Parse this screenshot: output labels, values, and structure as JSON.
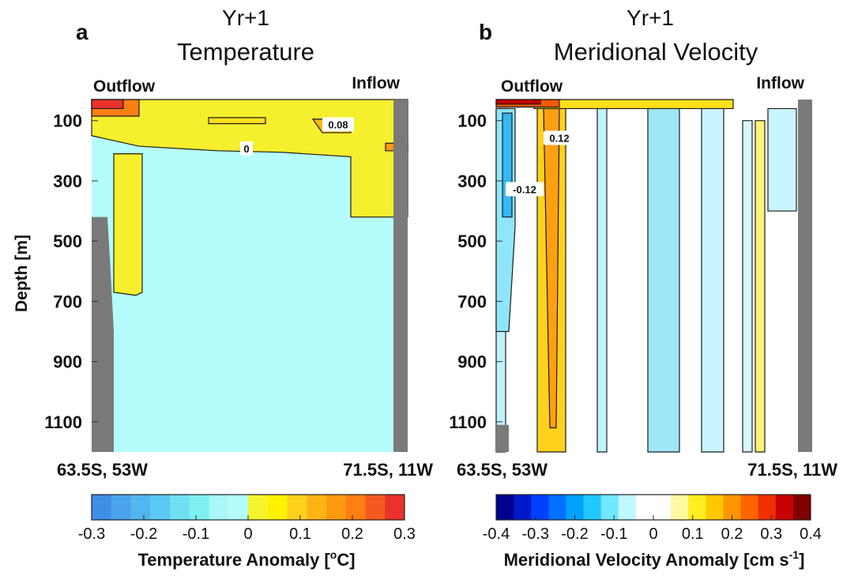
{
  "chart_data": [
    {
      "type": "heatmap",
      "panel_letter": "a",
      "title_line1": "Yr+1",
      "title_line2": "Temperature",
      "left_label": "Outflow",
      "right_label": "Inflow",
      "ylabel": "Depth [m]",
      "yticks": [
        "100",
        "300",
        "500",
        "700",
        "900",
        "1100"
      ],
      "ylim": [
        30,
        1200
      ],
      "x_start_label": "63.5S, 53W",
      "x_end_label": "71.5S, 11W",
      "contour_labels": [
        {
          "text": "0.08",
          "x": 0.78,
          "depth": 115
        },
        {
          "text": "0",
          "x": 0.49,
          "depth": 195
        }
      ],
      "colorbar": {
        "label": "Temperature Anomaly [",
        "unit_sup": "o",
        "unit_end": "C]",
        "ticks": [
          "-0.3",
          "-0.2",
          "-0.1",
          "0",
          "0.1",
          "0.2",
          "0.3"
        ],
        "min": -0.3,
        "max": 0.3,
        "colors": [
          "#3f8fe8",
          "#4aa3ec",
          "#52b6ef",
          "#5ac8f2",
          "#6fe0f2",
          "#7ef0f2",
          "#a8f8f8",
          "#b5fdfd",
          "#f5f52b",
          "#fff200",
          "#ffd11c",
          "#ffb414",
          "#ff9a10",
          "#ff7f12",
          "#f45a1f",
          "#e8322a"
        ]
      },
      "regions": [
        {
          "kind": "poly",
          "color": "#f5ef2e",
          "x": [
            0.0,
            0.3,
            0.58,
            0.82,
            1.0,
            1.0,
            0.82,
            0.82,
            0.6,
            0.4,
            0.15,
            0.0
          ],
          "depth": [
            30,
            30,
            30,
            30,
            30,
            420,
            420,
            220,
            205,
            200,
            185,
            150
          ]
        },
        {
          "kind": "poly",
          "color": "#f5ef2e",
          "x": [
            0.07,
            0.16,
            0.16,
            0.14,
            0.07
          ],
          "depth": [
            210,
            210,
            670,
            680,
            670
          ]
        },
        {
          "kind": "poly",
          "color": "#ffb414",
          "x": [
            0.7,
            0.82,
            0.82,
            0.73
          ],
          "depth": [
            95,
            95,
            140,
            140
          ]
        },
        {
          "kind": "poly",
          "color": "#ff9a10",
          "x": [
            0.93,
            1.0,
            1.0,
            0.93
          ],
          "depth": [
            175,
            175,
            200,
            200
          ]
        },
        {
          "kind": "poly",
          "color": "#ffe01a",
          "x": [
            0.37,
            0.55,
            0.55,
            0.37
          ],
          "depth": [
            90,
            90,
            110,
            110
          ]
        },
        {
          "kind": "poly",
          "color": "#ff7f12",
          "x": [
            0.0,
            0.15,
            0.15,
            0.0
          ],
          "depth": [
            30,
            30,
            85,
            85
          ]
        },
        {
          "kind": "poly",
          "color": "#e8322a",
          "x": [
            0.0,
            0.1,
            0.1,
            0.0
          ],
          "depth": [
            30,
            30,
            60,
            60
          ]
        }
      ],
      "land": [
        {
          "x": [
            0.0,
            0.05,
            0.06,
            0.07,
            0.07,
            0.0
          ],
          "depth": [
            420,
            420,
            600,
            800,
            1200,
            1200
          ]
        },
        {
          "x": [
            0.955,
            1.0,
            1.0,
            0.955
          ],
          "depth": [
            30,
            30,
            1200,
            1200
          ]
        }
      ],
      "background_color": "#b5fdfd"
    },
    {
      "type": "heatmap",
      "panel_letter": "b",
      "title_line1": "Yr+1",
      "title_line2": "Meridional Velocity",
      "left_label": "Outflow",
      "right_label": "Inflow",
      "yticks": [
        "100",
        "300",
        "500",
        "700",
        "900",
        "1100"
      ],
      "ylim": [
        30,
        1200
      ],
      "x_start_label": "63.5S, 53W",
      "x_end_label": "71.5S, 11W",
      "contour_labels": [
        {
          "text": "0.12",
          "x": 0.2,
          "depth": 160
        },
        {
          "text": "-0.12",
          "x": 0.09,
          "depth": 330
        }
      ],
      "colorbar": {
        "label": "Meridional Velocity Anomaly [cm s",
        "unit_sup": "-1",
        "unit_end": "]",
        "ticks": [
          "-0.4",
          "-0.3",
          "-0.2",
          "-0.1",
          "0",
          "0.1",
          "0.2",
          "0.3",
          "0.4"
        ],
        "min": -0.4,
        "max": 0.4,
        "colors": [
          "#00008f",
          "#0019c8",
          "#0040ff",
          "#0070ff",
          "#00a0ff",
          "#20c8ff",
          "#70e8ff",
          "#c0f8ff",
          "#ffffff",
          "#ffffff",
          "#fff8a0",
          "#ffee20",
          "#ffc800",
          "#ff9600",
          "#ff6400",
          "#f03000",
          "#c80000",
          "#800000"
        ]
      },
      "regions": [
        {
          "kind": "poly",
          "color": "#bdf3ff",
          "x": [
            0.0,
            0.03,
            0.03,
            0.0
          ],
          "depth": [
            60,
            60,
            1200,
            1200
          ]
        },
        {
          "kind": "poly",
          "color": "#8fe6fb",
          "x": [
            0.0,
            0.06,
            0.06,
            0.04,
            0.0
          ],
          "depth": [
            60,
            60,
            450,
            800,
            800
          ]
        },
        {
          "kind": "poly",
          "color": "#35b8f4",
          "x": [
            0.02,
            0.05,
            0.05,
            0.02
          ],
          "depth": [
            75,
            75,
            420,
            420
          ]
        },
        {
          "kind": "poly",
          "color": "#ffd11c",
          "x": [
            0.13,
            0.22,
            0.22,
            0.13
          ],
          "depth": [
            50,
            50,
            1200,
            1200
          ]
        },
        {
          "kind": "poly",
          "color": "#ffa013",
          "x": [
            0.15,
            0.2,
            0.19,
            0.17
          ],
          "depth": [
            60,
            60,
            1120,
            1120
          ]
        },
        {
          "kind": "poly",
          "color": "#bdf3ff",
          "x": [
            0.32,
            0.35,
            0.35,
            0.32
          ],
          "depth": [
            60,
            60,
            1200,
            1200
          ]
        },
        {
          "kind": "poly",
          "color": "#9fe6f8",
          "x": [
            0.48,
            0.58,
            0.58,
            0.48
          ],
          "depth": [
            55,
            55,
            1200,
            1200
          ]
        },
        {
          "kind": "poly",
          "color": "#c8f4ff",
          "x": [
            0.65,
            0.72,
            0.72,
            0.65
          ],
          "depth": [
            60,
            60,
            1200,
            1200
          ]
        },
        {
          "kind": "poly",
          "color": "#d8f7ff",
          "x": [
            0.78,
            0.81,
            0.81,
            0.78
          ],
          "depth": [
            100,
            100,
            1200,
            1200
          ]
        },
        {
          "kind": "poly",
          "color": "#fff27a",
          "x": [
            0.82,
            0.85,
            0.85,
            0.82
          ],
          "depth": [
            100,
            100,
            1200,
            1200
          ]
        },
        {
          "kind": "poly",
          "color": "#c8f4ff",
          "x": [
            0.86,
            0.95,
            0.95,
            0.86
          ],
          "depth": [
            60,
            60,
            400,
            400
          ]
        },
        {
          "kind": "poly",
          "color": "#ffe01a",
          "x": [
            0.12,
            0.75,
            0.75,
            0.12
          ],
          "depth": [
            30,
            30,
            60,
            60
          ]
        },
        {
          "kind": "poly",
          "color": "#f05a00",
          "x": [
            0.0,
            0.2,
            0.2,
            0.0
          ],
          "depth": [
            30,
            30,
            55,
            55
          ]
        },
        {
          "kind": "poly",
          "color": "#c80000",
          "x": [
            0.0,
            0.14,
            0.14,
            0.0
          ],
          "depth": [
            30,
            30,
            45,
            45
          ]
        }
      ],
      "land": [
        {
          "x": [
            0.0,
            0.04,
            0.04,
            0.0
          ],
          "depth": [
            1110,
            1110,
            1200,
            1200
          ]
        },
        {
          "x": [
            0.955,
            1.0,
            1.0,
            0.955
          ],
          "depth": [
            30,
            30,
            1200,
            1200
          ]
        }
      ],
      "background_color": "#ffffff"
    }
  ]
}
